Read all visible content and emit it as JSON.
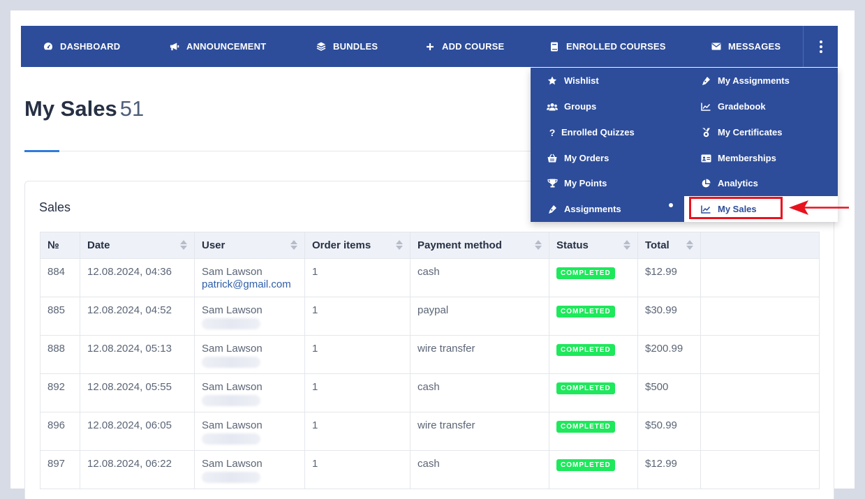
{
  "nav": {
    "items": [
      {
        "label": "DASHBOARD",
        "icon": "gauge-icon"
      },
      {
        "label": "ANNOUNCEMENT",
        "icon": "megaphone-icon"
      },
      {
        "label": "BUNDLES",
        "icon": "layers-icon"
      },
      {
        "label": "ADD COURSE",
        "icon": "plus-icon"
      },
      {
        "label": "ENROLLED COURSES",
        "icon": "book-icon"
      },
      {
        "label": "MESSAGES",
        "icon": "envelope-icon"
      }
    ],
    "more_icon": "more-vertical-icon"
  },
  "page": {
    "title": "My Sales",
    "count": "51"
  },
  "card": {
    "title": "Sales"
  },
  "table": {
    "columns": [
      "№",
      "Date",
      "User",
      "Order items",
      "Payment method",
      "Status",
      "Total"
    ],
    "rows": [
      {
        "id": "884",
        "date": "12.08.2024, 04:36",
        "user": "Sam Lawson",
        "email": "patrick@gmail.com",
        "items": "1",
        "payment": "cash",
        "status": "COMPLETED",
        "total": "$12.99"
      },
      {
        "id": "885",
        "date": "12.08.2024, 04:52",
        "user": "Sam Lawson",
        "email": "",
        "items": "1",
        "payment": "paypal",
        "status": "COMPLETED",
        "total": "$30.99"
      },
      {
        "id": "888",
        "date": "12.08.2024, 05:13",
        "user": "Sam Lawson",
        "email": "",
        "items": "1",
        "payment": "wire transfer",
        "status": "COMPLETED",
        "total": "$200.99"
      },
      {
        "id": "892",
        "date": "12.08.2024, 05:55",
        "user": "Sam Lawson",
        "email": "",
        "items": "1",
        "payment": "cash",
        "status": "COMPLETED",
        "total": "$500"
      },
      {
        "id": "896",
        "date": "12.08.2024, 06:05",
        "user": "Sam Lawson",
        "email": "",
        "items": "1",
        "payment": "wire transfer",
        "status": "COMPLETED",
        "total": "$50.99"
      },
      {
        "id": "897",
        "date": "12.08.2024, 06:22",
        "user": "Sam Lawson",
        "email": "",
        "items": "1",
        "payment": "cash",
        "status": "COMPLETED",
        "total": "$12.99"
      }
    ]
  },
  "dropdown": {
    "left": [
      {
        "label": "Wishlist",
        "icon": "star-icon"
      },
      {
        "label": "Groups",
        "icon": "users-icon"
      },
      {
        "label": "Enrolled Quizzes",
        "icon": "question-icon"
      },
      {
        "label": "My Orders",
        "icon": "basket-icon"
      },
      {
        "label": "My Points",
        "icon": "trophy-icon"
      },
      {
        "label": "Assignments",
        "icon": "pen-nib-icon"
      }
    ],
    "right": [
      {
        "label": "My Assignments",
        "icon": "pen-nib-icon"
      },
      {
        "label": "Gradebook",
        "icon": "line-chart-icon"
      },
      {
        "label": "My Certificates",
        "icon": "medal-icon"
      },
      {
        "label": "Memberships",
        "icon": "id-card-icon"
      },
      {
        "label": "Analytics",
        "icon": "pie-chart-icon"
      },
      {
        "label": "My Sales",
        "icon": "line-chart-icon"
      }
    ]
  },
  "colors": {
    "nav_bg": "#2d4d9b",
    "accent": "#2f7be0",
    "status_completed": "#1ee85b",
    "annotation_red": "#e8121e"
  }
}
